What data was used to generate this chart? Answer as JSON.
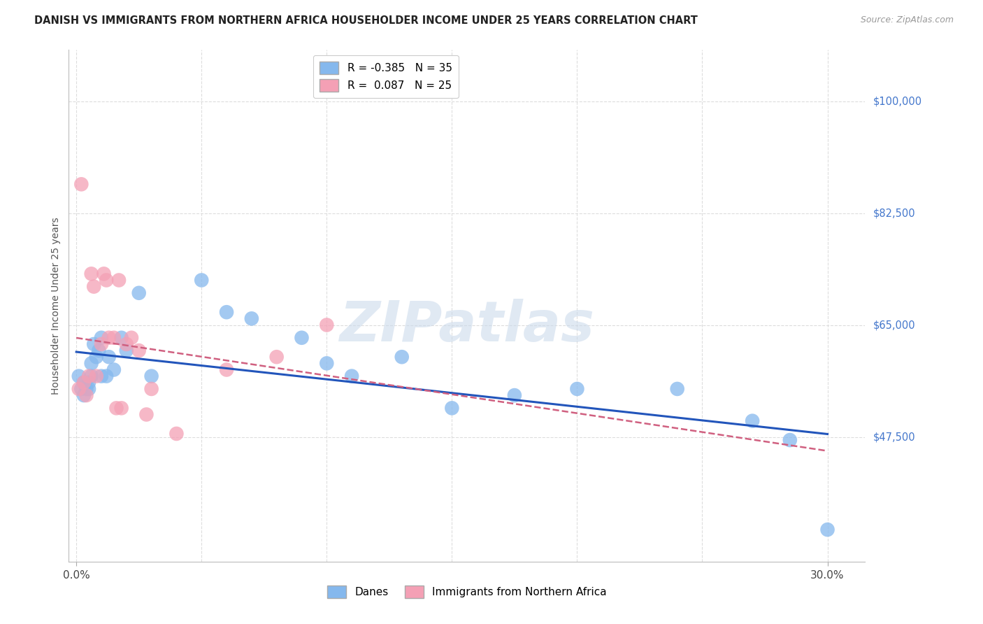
{
  "title": "DANISH VS IMMIGRANTS FROM NORTHERN AFRICA HOUSEHOLDER INCOME UNDER 25 YEARS CORRELATION CHART",
  "source": "Source: ZipAtlas.com",
  "ylabel": "Householder Income Under 25 years",
  "background_color": "#ffffff",
  "danes_color": "#85B8ED",
  "immigrants_color": "#F4A0B5",
  "danes_line_color": "#2255BB",
  "immigrants_line_color": "#D06080",
  "danes_label": "Danes",
  "immigrants_label": "Immigrants from Northern Africa",
  "danes_R": -0.385,
  "danes_N": 35,
  "immigrants_R": 0.087,
  "immigrants_N": 25,
  "ytick_values": [
    47500,
    65000,
    82500,
    100000
  ],
  "ytick_labels": [
    "$47,500",
    "$65,000",
    "$82,500",
    "$100,000"
  ],
  "ylim": [
    28000,
    108000
  ],
  "xlim": [
    -0.003,
    0.315
  ],
  "gridline_color": "#dddddd",
  "watermark": "ZIPatlas",
  "danes_x": [
    0.001,
    0.002,
    0.003,
    0.003,
    0.004,
    0.005,
    0.005,
    0.006,
    0.006,
    0.007,
    0.008,
    0.009,
    0.01,
    0.01,
    0.012,
    0.013,
    0.015,
    0.018,
    0.02,
    0.025,
    0.03,
    0.05,
    0.06,
    0.07,
    0.09,
    0.1,
    0.11,
    0.13,
    0.15,
    0.175,
    0.2,
    0.24,
    0.27,
    0.285,
    0.3
  ],
  "danes_y": [
    57000,
    55000,
    54000,
    56000,
    55000,
    56000,
    55000,
    57000,
    59000,
    62000,
    60000,
    61000,
    63000,
    57000,
    57000,
    60000,
    58000,
    63000,
    61000,
    70000,
    57000,
    72000,
    67000,
    66000,
    63000,
    59000,
    57000,
    60000,
    52000,
    54000,
    55000,
    55000,
    50000,
    47000,
    33000
  ],
  "immigrants_x": [
    0.001,
    0.002,
    0.003,
    0.004,
    0.005,
    0.006,
    0.007,
    0.008,
    0.01,
    0.011,
    0.012,
    0.013,
    0.015,
    0.016,
    0.017,
    0.018,
    0.02,
    0.022,
    0.025,
    0.028,
    0.03,
    0.04,
    0.06,
    0.08,
    0.1
  ],
  "immigrants_y": [
    55000,
    87000,
    56000,
    54000,
    57000,
    73000,
    71000,
    57000,
    62000,
    73000,
    72000,
    63000,
    63000,
    52000,
    72000,
    52000,
    62000,
    63000,
    61000,
    51000,
    55000,
    48000,
    58000,
    60000,
    65000
  ]
}
